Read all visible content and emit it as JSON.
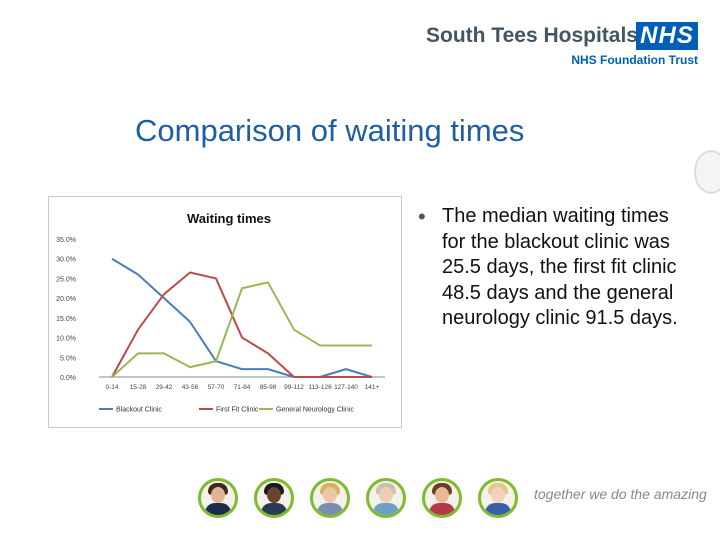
{
  "header": {
    "org_name": "South Tees Hospitals",
    "badge": "NHS",
    "trust": "NHS Foundation Trust"
  },
  "slide": {
    "title": "Comparison of waiting times",
    "bullet": "The median waiting times for the blackout clinic was 25.5 days, the first fit clinic 48.5 days and the general neurology clinic 91.5 days."
  },
  "footer": {
    "tagline": "together we do the amazing"
  },
  "chart_data": {
    "type": "line",
    "title": "Waiting times",
    "xlabel": "",
    "ylabel": "",
    "categories": [
      "0-14",
      "15-28",
      "29-42",
      "43-56",
      "57-70",
      "71-84",
      "85-98",
      "99-112",
      "113-126",
      "127-140",
      "141+"
    ],
    "ylim": [
      0,
      35
    ],
    "yticks": [
      "0.0%",
      "5.0%",
      "10.0%",
      "15.0%",
      "20.0%",
      "25.0%",
      "30.0%",
      "35.0%"
    ],
    "series": [
      {
        "name": "Blackout Clinic",
        "color": "#4a7ebb",
        "values": [
          30.0,
          26.0,
          20.0,
          14.0,
          4.0,
          2.0,
          2.0,
          0.0,
          0.0,
          2.0,
          0.0
        ]
      },
      {
        "name": "First Fit Clinic",
        "color": "#be4b48",
        "values": [
          0.0,
          12.0,
          21.0,
          26.5,
          25.0,
          10.0,
          6.0,
          0.0,
          0.0,
          0.0,
          0.0
        ]
      },
      {
        "name": "General Neurology Clinic",
        "color": "#98b954",
        "values": [
          0.0,
          6.0,
          6.0,
          2.5,
          4.0,
          22.5,
          24.0,
          12.0,
          8.0,
          8.0,
          8.0
        ]
      }
    ],
    "grid": false,
    "legend": "bottom"
  }
}
